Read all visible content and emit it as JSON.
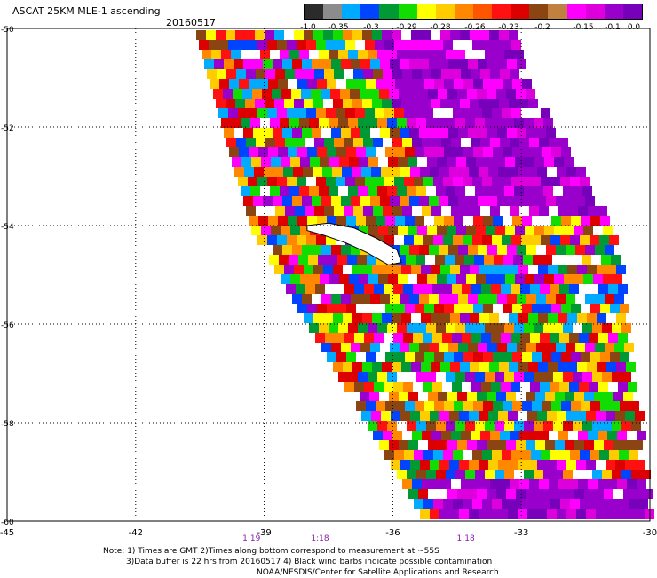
{
  "header": {
    "title": "ASCAT 25KM MLE-1 ascending",
    "date": "20160517"
  },
  "colorbar": {
    "colors": [
      "#2b2b2b",
      "#8c8c8c",
      "#00aaff",
      "#0044ff",
      "#009933",
      "#11dd00",
      "#ffff00",
      "#ffcc00",
      "#ff8800",
      "#ff5500",
      "#ff1111",
      "#dd0000",
      "#8b4513",
      "#c08040",
      "#ff00ff",
      "#dd00dd",
      "#9900cc",
      "#7700bb"
    ],
    "labels": [
      "-1.0",
      "-0.35",
      "-0.3",
      "-0.29",
      "-0.28",
      "-0.26",
      "-0.23",
      "-0.2",
      "-0.15",
      "-0.1",
      "0.0"
    ]
  },
  "axes": {
    "lat_labels": [
      "-50",
      "-52",
      "-54",
      "-56",
      "-58",
      "-60"
    ],
    "lon_labels": [
      "-45",
      "-42",
      "-39",
      "-36",
      "-33",
      "-30"
    ]
  },
  "times": [
    {
      "label": "1:19",
      "lon": -39.3
    },
    {
      "label": "1:18",
      "lon": -37.7
    },
    {
      "label": "1:18",
      "lon": -34.3
    }
  ],
  "notes": {
    "line1": "Note: 1) Times are GMT 2)Times along bottom correspond to measurement at ~55S",
    "line2": "3)Data buffer is 22 hrs from 20160517 4) Black wind barbs indicate possible contamination",
    "line3": "NOAA/NESDIS/Center for Satellite Applications and Research"
  },
  "map_data": {
    "lon_range": [
      -45,
      -30
    ],
    "lat_range": [
      -60,
      -50
    ],
    "swath_left_edge": [
      [
        -50,
        -40.6
      ],
      [
        -54,
        -39.3
      ],
      [
        -60,
        -35.2
      ]
    ],
    "swath_right_edge": [
      [
        -50.8,
        -33.1
      ],
      [
        -54,
        -30.9
      ],
      [
        -60,
        -30
      ]
    ],
    "land": "South Georgia Island"
  }
}
